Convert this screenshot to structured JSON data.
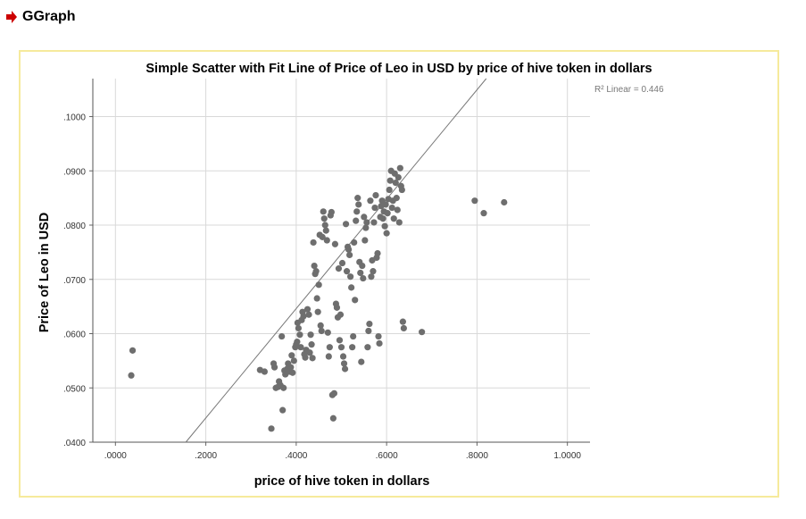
{
  "header": {
    "title": "GGraph",
    "icon": "red-arrow-right-icon",
    "icon_color": "#cc0000"
  },
  "chart_data": {
    "type": "scatter",
    "title": "Simple Scatter with Fit Line of Price of Leo in USD by price of hive token in dollars",
    "xlabel": "price of hive token in dollars",
    "ylabel": "Price of Leo in USD",
    "xlim": [
      -0.05,
      1.05
    ],
    "ylim": [
      0.04,
      0.107
    ],
    "xticks": [
      0.0,
      0.2,
      0.4,
      0.6,
      0.8,
      1.0
    ],
    "xtick_labels": [
      ".0000",
      ".2000",
      ".4000",
      ".6000",
      ".8000",
      "1.0000"
    ],
    "yticks": [
      0.04,
      0.05,
      0.06,
      0.07,
      0.08,
      0.09,
      0.1
    ],
    "ytick_labels": [
      ".0400",
      ".0500",
      ".0600",
      ".0700",
      ".0800",
      ".0900",
      ".1000"
    ],
    "grid": true,
    "fit_label": "R² Linear = 0.446",
    "fit_line": {
      "intercept": 0.0243,
      "slope": 0.1008
    },
    "point_color": "#6e6e6e",
    "frame_color": "#f6ea9c",
    "points": [
      [
        0.035,
        0.0523
      ],
      [
        0.038,
        0.0569
      ],
      [
        0.32,
        0.0533
      ],
      [
        0.33,
        0.053
      ],
      [
        0.345,
        0.0425
      ],
      [
        0.35,
        0.0545
      ],
      [
        0.352,
        0.0538
      ],
      [
        0.355,
        0.05
      ],
      [
        0.36,
        0.0502
      ],
      [
        0.362,
        0.0512
      ],
      [
        0.365,
        0.0505
      ],
      [
        0.368,
        0.0595
      ],
      [
        0.37,
        0.0459
      ],
      [
        0.372,
        0.05
      ],
      [
        0.374,
        0.0532
      ],
      [
        0.376,
        0.0525
      ],
      [
        0.38,
        0.0535
      ],
      [
        0.382,
        0.0545
      ],
      [
        0.385,
        0.053
      ],
      [
        0.388,
        0.0538
      ],
      [
        0.39,
        0.056
      ],
      [
        0.392,
        0.0528
      ],
      [
        0.395,
        0.055
      ],
      [
        0.398,
        0.0575
      ],
      [
        0.4,
        0.058
      ],
      [
        0.402,
        0.0585
      ],
      [
        0.403,
        0.062
      ],
      [
        0.405,
        0.061
      ],
      [
        0.408,
        0.0598
      ],
      [
        0.41,
        0.0575
      ],
      [
        0.412,
        0.0625
      ],
      [
        0.414,
        0.064
      ],
      [
        0.416,
        0.0632
      ],
      [
        0.418,
        0.0562
      ],
      [
        0.42,
        0.0556
      ],
      [
        0.422,
        0.057
      ],
      [
        0.425,
        0.0645
      ],
      [
        0.428,
        0.0635
      ],
      [
        0.43,
        0.0565
      ],
      [
        0.432,
        0.0598
      ],
      [
        0.434,
        0.058
      ],
      [
        0.436,
        0.0555
      ],
      [
        0.438,
        0.0768
      ],
      [
        0.44,
        0.0725
      ],
      [
        0.442,
        0.071
      ],
      [
        0.444,
        0.0715
      ],
      [
        0.446,
        0.0665
      ],
      [
        0.448,
        0.064
      ],
      [
        0.45,
        0.069
      ],
      [
        0.452,
        0.0782
      ],
      [
        0.454,
        0.0615
      ],
      [
        0.456,
        0.0605
      ],
      [
        0.458,
        0.0778
      ],
      [
        0.46,
        0.0825
      ],
      [
        0.462,
        0.0812
      ],
      [
        0.464,
        0.08
      ],
      [
        0.466,
        0.079
      ],
      [
        0.468,
        0.0772
      ],
      [
        0.47,
        0.0602
      ],
      [
        0.472,
        0.0558
      ],
      [
        0.474,
        0.0575
      ],
      [
        0.476,
        0.0818
      ],
      [
        0.478,
        0.0824
      ],
      [
        0.48,
        0.0487
      ],
      [
        0.482,
        0.0444
      ],
      [
        0.484,
        0.049
      ],
      [
        0.486,
        0.0765
      ],
      [
        0.488,
        0.0655
      ],
      [
        0.49,
        0.0648
      ],
      [
        0.492,
        0.063
      ],
      [
        0.494,
        0.072
      ],
      [
        0.496,
        0.0588
      ],
      [
        0.498,
        0.0635
      ],
      [
        0.5,
        0.0575
      ],
      [
        0.502,
        0.073
      ],
      [
        0.504,
        0.0558
      ],
      [
        0.506,
        0.0545
      ],
      [
        0.508,
        0.0535
      ],
      [
        0.51,
        0.0802
      ],
      [
        0.512,
        0.0715
      ],
      [
        0.514,
        0.076
      ],
      [
        0.516,
        0.0755
      ],
      [
        0.518,
        0.0745
      ],
      [
        0.52,
        0.0705
      ],
      [
        0.522,
        0.0685
      ],
      [
        0.524,
        0.0575
      ],
      [
        0.526,
        0.0595
      ],
      [
        0.528,
        0.0768
      ],
      [
        0.53,
        0.0662
      ],
      [
        0.532,
        0.0808
      ],
      [
        0.534,
        0.0825
      ],
      [
        0.536,
        0.085
      ],
      [
        0.538,
        0.0838
      ],
      [
        0.54,
        0.0732
      ],
      [
        0.542,
        0.0712
      ],
      [
        0.544,
        0.0548
      ],
      [
        0.546,
        0.0725
      ],
      [
        0.548,
        0.0702
      ],
      [
        0.55,
        0.0815
      ],
      [
        0.552,
        0.0772
      ],
      [
        0.554,
        0.0795
      ],
      [
        0.556,
        0.0805
      ],
      [
        0.558,
        0.0575
      ],
      [
        0.56,
        0.0605
      ],
      [
        0.562,
        0.0618
      ],
      [
        0.564,
        0.0845
      ],
      [
        0.566,
        0.0705
      ],
      [
        0.568,
        0.0735
      ],
      [
        0.57,
        0.0715
      ],
      [
        0.572,
        0.0805
      ],
      [
        0.574,
        0.0832
      ],
      [
        0.576,
        0.0855
      ],
      [
        0.578,
        0.074
      ],
      [
        0.58,
        0.0748
      ],
      [
        0.582,
        0.0595
      ],
      [
        0.584,
        0.0582
      ],
      [
        0.586,
        0.0815
      ],
      [
        0.588,
        0.0835
      ],
      [
        0.59,
        0.0845
      ],
      [
        0.592,
        0.0812
      ],
      [
        0.594,
        0.0825
      ],
      [
        0.596,
        0.0798
      ],
      [
        0.598,
        0.0838
      ],
      [
        0.6,
        0.0785
      ],
      [
        0.602,
        0.0822
      ],
      [
        0.604,
        0.0848
      ],
      [
        0.606,
        0.0865
      ],
      [
        0.608,
        0.0882
      ],
      [
        0.61,
        0.09
      ],
      [
        0.612,
        0.0832
      ],
      [
        0.614,
        0.0845
      ],
      [
        0.616,
        0.0812
      ],
      [
        0.618,
        0.0895
      ],
      [
        0.62,
        0.0878
      ],
      [
        0.622,
        0.085
      ],
      [
        0.624,
        0.0828
      ],
      [
        0.626,
        0.0888
      ],
      [
        0.628,
        0.0805
      ],
      [
        0.63,
        0.0905
      ],
      [
        0.632,
        0.0872
      ],
      [
        0.634,
        0.0865
      ],
      [
        0.636,
        0.0622
      ],
      [
        0.638,
        0.061
      ],
      [
        0.678,
        0.0603
      ],
      [
        0.795,
        0.0845
      ],
      [
        0.815,
        0.0822
      ],
      [
        0.86,
        0.0842
      ]
    ]
  }
}
